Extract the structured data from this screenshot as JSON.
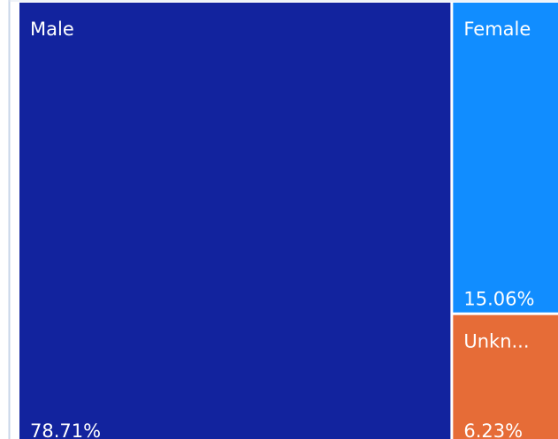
{
  "chart_data": {
    "type": "treemap",
    "categories": [
      "Male",
      "Female",
      "Unkn..."
    ],
    "values": [
      78.71,
      15.06,
      6.23
    ],
    "value_labels": [
      "78.71%",
      "15.06%",
      "6.23%"
    ],
    "colors": [
      "#12239e",
      "#118dff",
      "#e66c37"
    ]
  }
}
